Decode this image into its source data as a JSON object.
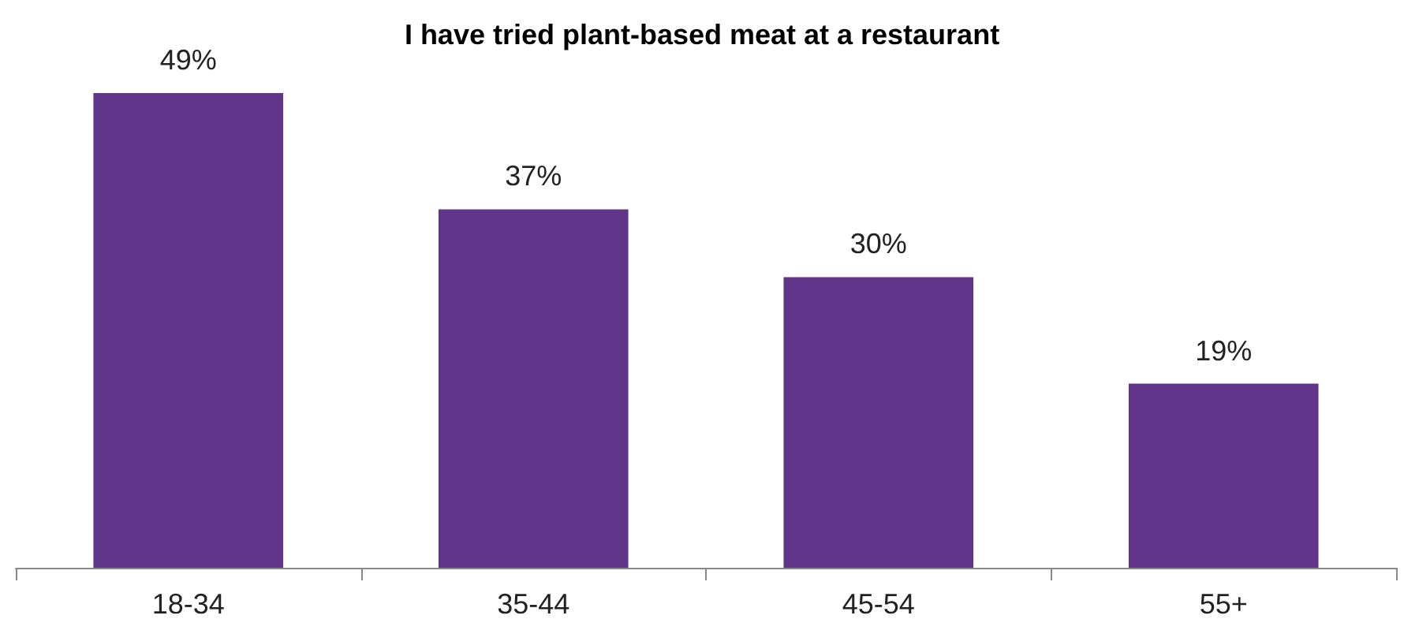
{
  "chart_data": {
    "type": "bar",
    "title": "I have tried plant-based meat at a restaurant",
    "categories": [
      "18-34",
      "35-44",
      "45-54",
      "55+"
    ],
    "values": [
      49,
      37,
      30,
      19
    ],
    "value_labels": [
      "49%",
      "37%",
      "30%",
      "19%"
    ],
    "color": "#5f3489"
  }
}
